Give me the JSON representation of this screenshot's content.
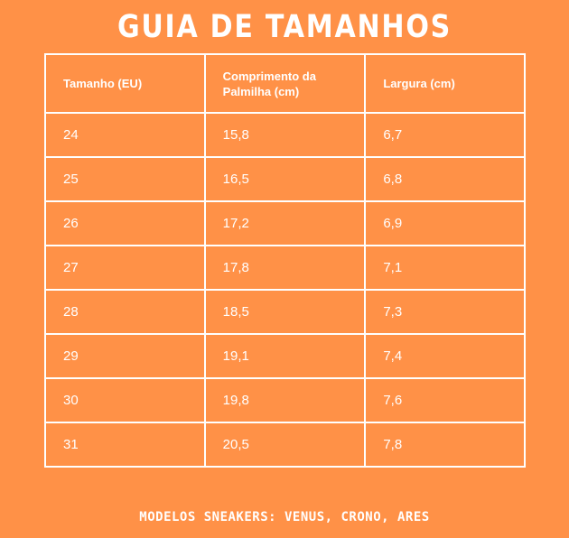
{
  "title": "GUIA DE TAMANHOS",
  "table": {
    "headers": [
      "Tamanho (EU)",
      "Comprimento da Palmilha (cm)",
      "Largura (cm)"
    ],
    "rows": [
      [
        "24",
        "15,8",
        "6,7"
      ],
      [
        "25",
        "16,5",
        "6,8"
      ],
      [
        "26",
        "17,2",
        "6,9"
      ],
      [
        "27",
        "17,8",
        "7,1"
      ],
      [
        "28",
        "18,5",
        "7,3"
      ],
      [
        "29",
        "19,1",
        "7,4"
      ],
      [
        "30",
        "19,8",
        "7,6"
      ],
      [
        "31",
        "20,5",
        "7,8"
      ]
    ]
  },
  "footer": "MODELOS SNEAKERS: VENUS, CRONO, ARES",
  "colors": {
    "background": "#FF9147",
    "text": "#FFFFFF",
    "border": "#FFFFFF"
  }
}
